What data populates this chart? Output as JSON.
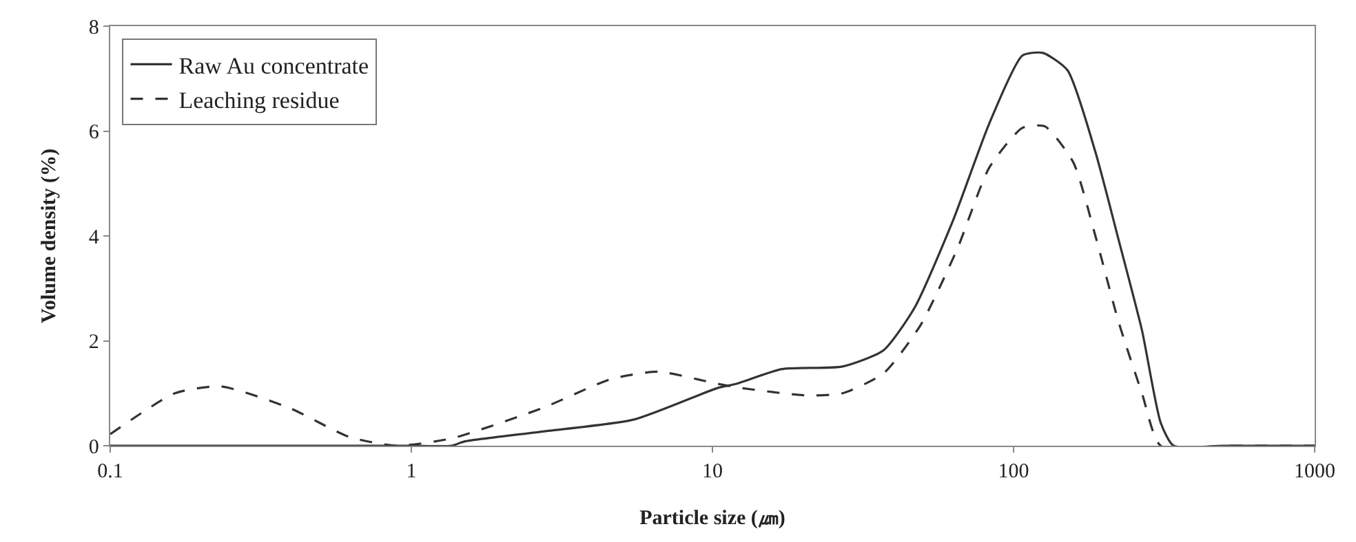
{
  "chart_data": {
    "type": "line",
    "xlabel": "Particle size (㎛)",
    "ylabel": "Volume density (%)",
    "log": "x",
    "xlim": [
      0.1,
      1000
    ],
    "xticks": [
      0.1,
      1,
      10,
      100,
      1000
    ],
    "ylim": [
      0,
      8
    ],
    "yticks": [
      0,
      2,
      4,
      6,
      8
    ],
    "grid": false,
    "legend": "top left",
    "marker": "none",
    "series": [
      {
        "name": "Raw Au concentrate",
        "color": "#333333",
        "line_style": "solid",
        "x": [
          0.1,
          0.5,
          1.0,
          1.36,
          1.5,
          2.73,
          5.5,
          10.4,
          12,
          17,
          27,
          37,
          47,
          63,
          83,
          107,
          125,
          151,
          187,
          223,
          267,
          308,
          340,
          500,
          1000
        ],
        "values": [
          0,
          0,
          0,
          0,
          0.08,
          0.27,
          0.5,
          1.1,
          1.18,
          1.46,
          1.51,
          1.82,
          2.64,
          4.3,
          6.14,
          7.44,
          7.49,
          7.16,
          5.6,
          3.94,
          2.2,
          0.44,
          0,
          0,
          0
        ]
      },
      {
        "name": "Leaching residue",
        "color": "#333333",
        "line_style": "dashed",
        "x": [
          0.1,
          0.164,
          0.233,
          0.394,
          0.62,
          0.89,
          1.36,
          2.73,
          4.6,
          6.6,
          10.4,
          12.5,
          20.3,
          27,
          37,
          49,
          65,
          83,
          107,
          127,
          158,
          187,
          223,
          267,
          308,
          500,
          1000
        ],
        "values": [
          0.22,
          1.0,
          1.13,
          0.72,
          0.17,
          0,
          0.14,
          0.72,
          1.27,
          1.41,
          1.18,
          1.1,
          0.96,
          1.0,
          1.38,
          2.29,
          3.75,
          5.3,
          6.06,
          6.09,
          5.4,
          4.0,
          2.37,
          1.0,
          0,
          0,
          0
        ]
      }
    ]
  }
}
